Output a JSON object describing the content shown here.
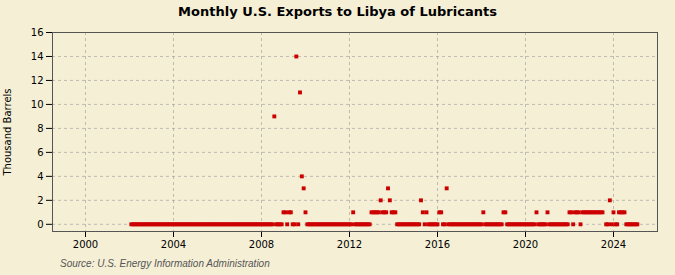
{
  "chart_data": {
    "type": "scatter",
    "title": "Monthly U.S. Exports to Libya of Lubricants",
    "ylabel": "Thousand Barrels",
    "caption": "Source: U.S. Energy Information Administration",
    "xlim": [
      1998.5,
      2026.0
    ],
    "xticks": [
      2000,
      2004,
      2008,
      2012,
      2016,
      2020,
      2024
    ],
    "ylim": [
      -0.6,
      16
    ],
    "yticks": [
      0,
      2,
      4,
      6,
      8,
      10,
      12,
      14,
      16
    ],
    "grid": true,
    "color": "#cc0000",
    "marker": "square",
    "x": [
      2002.083,
      2002.167,
      2002.25,
      2002.333,
      2002.417,
      2002.5,
      2002.583,
      2002.667,
      2002.75,
      2002.833,
      2002.917,
      2003.0,
      2003.083,
      2003.167,
      2003.25,
      2003.333,
      2003.417,
      2003.5,
      2003.583,
      2003.667,
      2003.75,
      2003.833,
      2003.917,
      2004.0,
      2004.083,
      2004.167,
      2004.25,
      2004.333,
      2004.417,
      2004.5,
      2004.583,
      2004.667,
      2004.75,
      2004.833,
      2004.917,
      2005.0,
      2005.083,
      2005.167,
      2005.25,
      2005.333,
      2005.417,
      2005.5,
      2005.583,
      2005.667,
      2005.75,
      2005.833,
      2005.917,
      2006.0,
      2006.083,
      2006.167,
      2006.25,
      2006.333,
      2006.417,
      2006.5,
      2006.583,
      2006.667,
      2006.75,
      2006.833,
      2006.917,
      2007.0,
      2007.083,
      2007.167,
      2007.25,
      2007.333,
      2007.417,
      2007.5,
      2007.583,
      2007.667,
      2007.75,
      2007.833,
      2007.917,
      2008.0,
      2008.083,
      2008.167,
      2008.25,
      2008.333,
      2008.417,
      2008.5,
      2008.583,
      2008.667,
      2008.75,
      2008.833,
      2008.917,
      2009.0,
      2009.083,
      2009.167,
      2009.25,
      2009.333,
      2009.417,
      2009.5,
      2009.583,
      2009.667,
      2009.75,
      2009.833,
      2009.917,
      2010.0,
      2010.083,
      2010.167,
      2010.25,
      2010.333,
      2010.417,
      2010.5,
      2010.583,
      2010.667,
      2010.75,
      2010.833,
      2010.917,
      2011.0,
      2011.083,
      2011.167,
      2011.25,
      2011.333,
      2011.417,
      2011.5,
      2011.583,
      2011.667,
      2011.75,
      2011.833,
      2011.917,
      2012.0,
      2012.083,
      2012.167,
      2012.25,
      2012.333,
      2012.417,
      2012.5,
      2012.583,
      2012.667,
      2012.75,
      2012.833,
      2012.917,
      2013.0,
      2013.083,
      2013.167,
      2013.25,
      2013.333,
      2013.417,
      2013.5,
      2013.583,
      2013.667,
      2013.75,
      2013.833,
      2013.917,
      2014.0,
      2014.083,
      2014.167,
      2014.25,
      2014.333,
      2014.417,
      2014.5,
      2014.583,
      2014.667,
      2014.75,
      2014.833,
      2014.917,
      2015.0,
      2015.083,
      2015.167,
      2015.25,
      2015.333,
      2015.417,
      2015.5,
      2015.583,
      2015.667,
      2015.75,
      2015.833,
      2015.917,
      2016.0,
      2016.083,
      2016.167,
      2016.25,
      2016.333,
      2016.417,
      2016.5,
      2016.583,
      2016.667,
      2016.75,
      2016.833,
      2016.917,
      2017.0,
      2017.083,
      2017.167,
      2017.25,
      2017.333,
      2017.417,
      2017.5,
      2017.583,
      2017.667,
      2017.75,
      2017.833,
      2017.917,
      2018.0,
      2018.083,
      2018.167,
      2018.25,
      2018.333,
      2018.417,
      2018.5,
      2018.583,
      2018.667,
      2018.75,
      2018.833,
      2018.917,
      2019.0,
      2019.083,
      2019.167,
      2019.25,
      2019.333,
      2019.417,
      2019.5,
      2019.583,
      2019.667,
      2019.75,
      2019.833,
      2019.917,
      2020.0,
      2020.083,
      2020.167,
      2020.25,
      2020.333,
      2020.417,
      2020.5,
      2020.583,
      2020.667,
      2020.75,
      2020.833,
      2020.917,
      2021.0,
      2021.083,
      2021.167,
      2021.25,
      2021.333,
      2021.417,
      2021.5,
      2021.583,
      2021.667,
      2021.75,
      2021.833,
      2021.917,
      2022.0,
      2022.083,
      2022.167,
      2022.25,
      2022.333,
      2022.417,
      2022.5,
      2022.583,
      2022.667,
      2022.75,
      2022.833,
      2022.917,
      2023.0,
      2023.083,
      2023.167,
      2023.25,
      2023.333,
      2023.417,
      2023.5,
      2023.667,
      2023.75,
      2023.833,
      2023.917,
      2024.0,
      2024.083,
      2024.167,
      2024.25,
      2024.333,
      2024.417,
      2024.5,
      2024.583,
      2024.667,
      2024.75,
      2024.833,
      2024.917,
      2025.0,
      2025.083
    ],
    "values": [
      0,
      0,
      0,
      0,
      0,
      0,
      0,
      0,
      0,
      0,
      0,
      0,
      0,
      0,
      0,
      0,
      0,
      0,
      0,
      0,
      0,
      0,
      0,
      0,
      0,
      0,
      0,
      0,
      0,
      0,
      0,
      0,
      0,
      0,
      0,
      0,
      0,
      0,
      0,
      0,
      0,
      0,
      0,
      0,
      0,
      0,
      0,
      0,
      0,
      0,
      0,
      0,
      0,
      0,
      0,
      0,
      0,
      0,
      0,
      0,
      0,
      0,
      0,
      0,
      0,
      0,
      0,
      0,
      0,
      0,
      0,
      0,
      0,
      0,
      0,
      0,
      0,
      0,
      9,
      0,
      0,
      0,
      0,
      1,
      1,
      0,
      1,
      1,
      0,
      0,
      14,
      0,
      11,
      4,
      3,
      1,
      0,
      0,
      0,
      0,
      0,
      0,
      0,
      0,
      0,
      0,
      0,
      0,
      0,
      0,
      0,
      0,
      0,
      0,
      0,
      0,
      0,
      0,
      0,
      0,
      0,
      1,
      0,
      0,
      0,
      0,
      0,
      0,
      0,
      0,
      0,
      1,
      1,
      1,
      1,
      1,
      2,
      1,
      1,
      1,
      3,
      2,
      1,
      1,
      1,
      0,
      0,
      0,
      0,
      0,
      0,
      0,
      0,
      0,
      0,
      0,
      0,
      0,
      2,
      1,
      0,
      1,
      0,
      0,
      0,
      0,
      0,
      0,
      1,
      1,
      0,
      0,
      3,
      0,
      0,
      0,
      0,
      0,
      0,
      0,
      0,
      0,
      0,
      0,
      0,
      0,
      0,
      0,
      0,
      0,
      0,
      0,
      1,
      0,
      0,
      0,
      0,
      0,
      0,
      0,
      0,
      0,
      0,
      1,
      1,
      0,
      0,
      0,
      0,
      0,
      0,
      0,
      0,
      0,
      0,
      0,
      0,
      0,
      0,
      0,
      0,
      1,
      0,
      0,
      0,
      0,
      0,
      1,
      0,
      0,
      0,
      0,
      0,
      0,
      0,
      0,
      0,
      0,
      0,
      1,
      1,
      0,
      1,
      1,
      1,
      0,
      1,
      1,
      1,
      1,
      1,
      1,
      1,
      1,
      1,
      1,
      1,
      1,
      0,
      0,
      2,
      0,
      1,
      0,
      0,
      1,
      1,
      1,
      1,
      0,
      0,
      0,
      0,
      0,
      0,
      0
    ]
  }
}
